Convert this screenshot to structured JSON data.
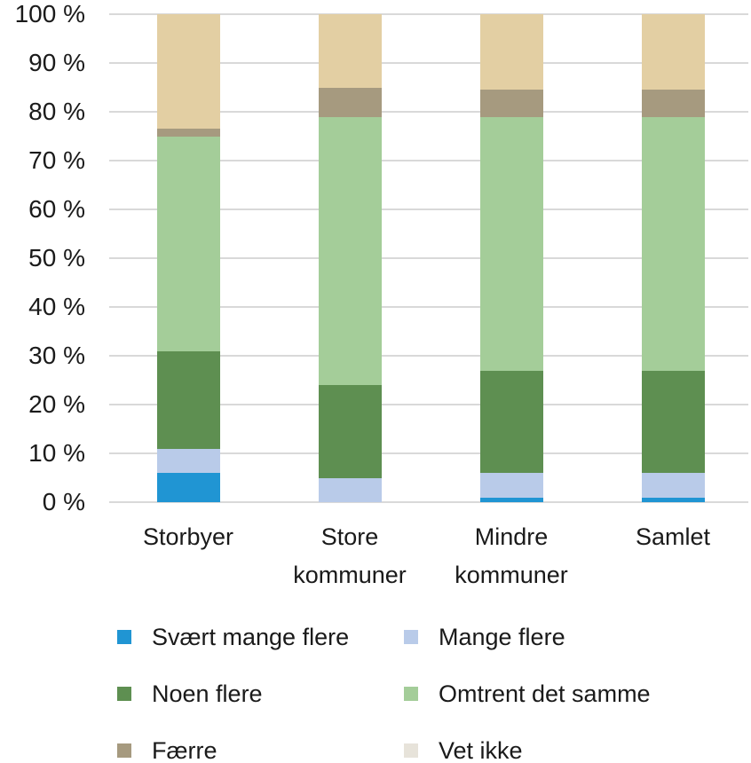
{
  "chart_data": {
    "type": "bar",
    "stacked": true,
    "percent_axis": true,
    "title": "",
    "xlabel": "",
    "ylabel": "",
    "ylim": [
      0,
      100
    ],
    "grid": true,
    "legend_position": "bottom",
    "y_ticks": [
      "100 %",
      "90 %",
      "80 %",
      "70 %",
      "60 %",
      "50 %",
      "40 %",
      "30 %",
      "20 %",
      "10 %",
      "0 %"
    ],
    "categories": [
      "Storbyer",
      "Store\nkommuner",
      "Mindre\nkommuner",
      "Samlet"
    ],
    "series": [
      {
        "name": "Svært mange flere",
        "color": "#2095d3",
        "values": [
          6,
          0,
          1,
          1
        ]
      },
      {
        "name": "Mange flere",
        "color": "#b9cbe9",
        "values": [
          5,
          5,
          5,
          5
        ]
      },
      {
        "name": "Noen flere",
        "color": "#5e8f51",
        "values": [
          20,
          19,
          21,
          21
        ]
      },
      {
        "name": "Omtrent det samme",
        "color": "#a4cd99",
        "values": [
          44,
          55,
          52,
          52
        ]
      },
      {
        "name": "Færre",
        "color": "#a69a7f",
        "values": [
          1.5,
          6,
          5.5,
          5.5
        ]
      },
      {
        "name": "Vet ikke",
        "color": "#e3cfa3",
        "legend_color": "#e7e3da",
        "values": [
          23.5,
          15,
          15.5,
          15.5
        ]
      }
    ]
  },
  "layout_colors": {
    "grid": "#d9d9d9",
    "text": "#1a1a1a",
    "background": "#ffffff"
  }
}
